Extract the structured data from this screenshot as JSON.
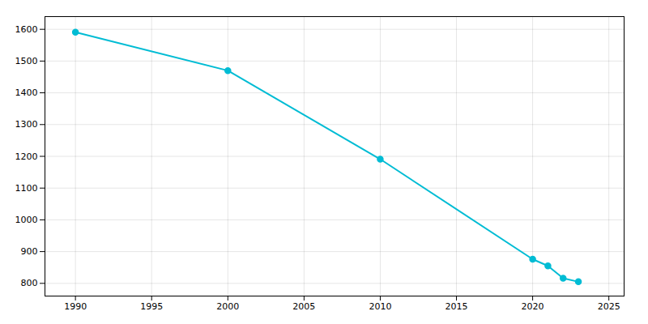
{
  "chart_data": {
    "type": "line",
    "x": [
      1990,
      2000,
      2010,
      2020,
      2021,
      2022,
      2023
    ],
    "values": [
      1591,
      1470,
      1191,
      876,
      855,
      816,
      805
    ],
    "color": "#00BCD4",
    "marker": "circle",
    "xlim": [
      1988,
      2026
    ],
    "ylim": [
      760,
      1640
    ],
    "xticks": [
      1990,
      1995,
      2000,
      2005,
      2010,
      2015,
      2020,
      2025
    ],
    "yticks": [
      800,
      900,
      1000,
      1100,
      1200,
      1300,
      1400,
      1500,
      1600
    ],
    "grid": true
  }
}
